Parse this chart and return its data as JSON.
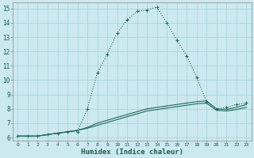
{
  "xlabel": "Humidex (Indice chaleur)",
  "background_color": "#cce9f0",
  "grid_color": "#aad4dc",
  "line_color": "#1a6b5a",
  "xlim": [
    -0.5,
    23.5
  ],
  "ylim": [
    5.8,
    15.4
  ],
  "xticks": [
    0,
    1,
    2,
    3,
    4,
    5,
    6,
    7,
    8,
    9,
    10,
    11,
    12,
    13,
    14,
    15,
    16,
    17,
    18,
    19,
    20,
    21,
    22,
    23
  ],
  "yticks": [
    6,
    7,
    8,
    9,
    10,
    11,
    12,
    13,
    14,
    15
  ],
  "series1_x": [
    0,
    1,
    2,
    3,
    4,
    5,
    6,
    7,
    8,
    9,
    10,
    11,
    12,
    13,
    14,
    15,
    16,
    17,
    18,
    19,
    20,
    21,
    22,
    23
  ],
  "series1_y": [
    6.1,
    6.1,
    6.1,
    6.2,
    6.3,
    6.4,
    6.4,
    8.0,
    10.5,
    11.8,
    13.3,
    14.2,
    14.8,
    14.9,
    15.1,
    14.0,
    12.8,
    11.7,
    10.2,
    8.5,
    8.0,
    8.1,
    8.3,
    8.4
  ],
  "series2_x": [
    0,
    1,
    2,
    3,
    4,
    5,
    6,
    7,
    8,
    9,
    10,
    11,
    12,
    13,
    14,
    15,
    16,
    17,
    18,
    19,
    20,
    21,
    22,
    23
  ],
  "series2_y": [
    6.1,
    6.1,
    6.1,
    6.2,
    6.3,
    6.4,
    6.5,
    6.7,
    7.0,
    7.2,
    7.4,
    7.6,
    7.8,
    8.0,
    8.1,
    8.2,
    8.3,
    8.4,
    8.5,
    8.55,
    8.0,
    7.95,
    8.1,
    8.3
  ],
  "series3_x": [
    0,
    1,
    2,
    3,
    4,
    5,
    6,
    7,
    8,
    9,
    10,
    11,
    12,
    13,
    14,
    15,
    16,
    17,
    18,
    19,
    20,
    21,
    22,
    23
  ],
  "series3_y": [
    6.1,
    6.1,
    6.1,
    6.2,
    6.3,
    6.4,
    6.5,
    6.65,
    6.85,
    7.05,
    7.25,
    7.45,
    7.65,
    7.85,
    7.95,
    8.05,
    8.15,
    8.25,
    8.35,
    8.4,
    7.9,
    7.85,
    7.95,
    8.1
  ]
}
